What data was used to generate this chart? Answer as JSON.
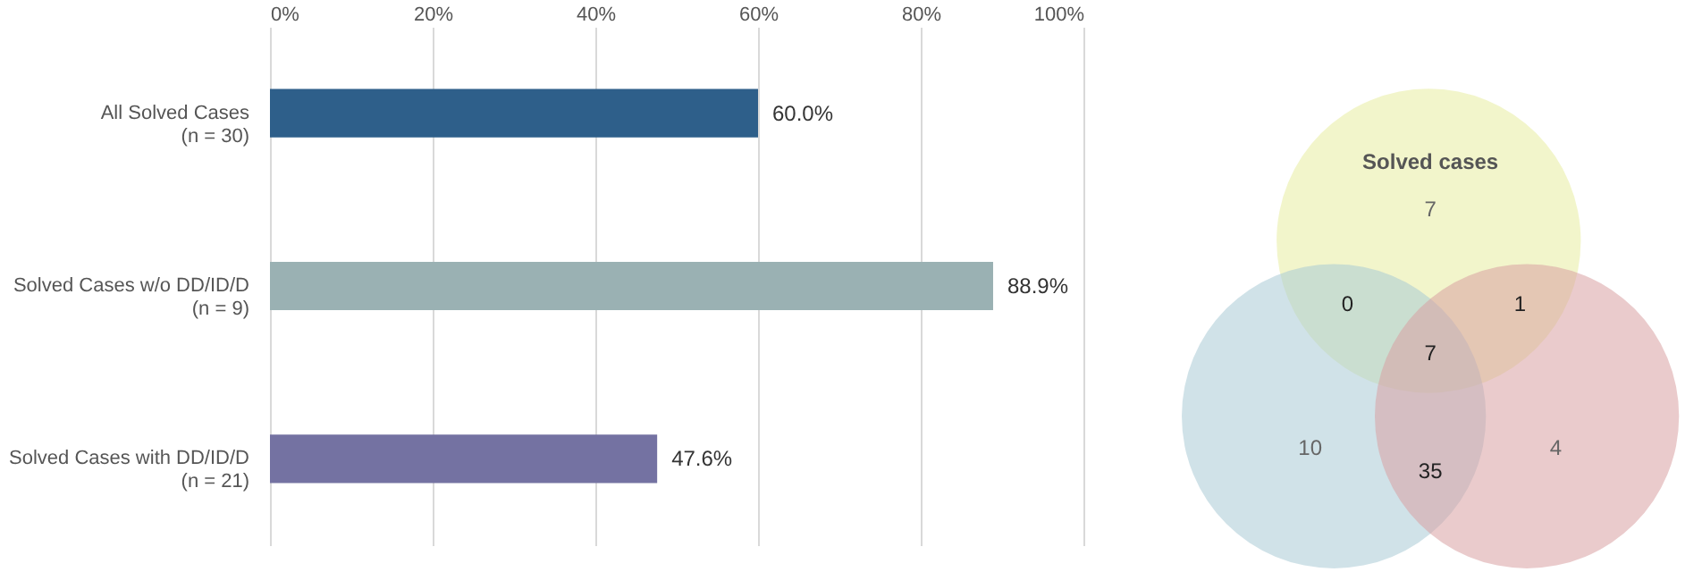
{
  "chart_data": [
    {
      "type": "bar",
      "orientation": "horizontal",
      "categories": [
        "All Solved Cases\n(n = 30)",
        "Solved Cases w/o DD/ID/D\n(n = 9)",
        "Solved Cases with DD/ID/D\n(n = 21)"
      ],
      "values": [
        60.0,
        88.9,
        47.6
      ],
      "colors": [
        "#2e5f8a",
        "#9ab1b3",
        "#7472a2"
      ],
      "value_labels": [
        "60.0%",
        "88.9%",
        "47.6%"
      ],
      "xlim": [
        0,
        100
      ],
      "xticks": [
        {
          "value": 0,
          "label": "0%"
        },
        {
          "value": 20,
          "label": "20%"
        },
        {
          "value": 40,
          "label": "40%"
        },
        {
          "value": 60,
          "label": "60%"
        },
        {
          "value": 80,
          "label": "80%"
        },
        {
          "value": 100,
          "label": "100%"
        }
      ],
      "grid": "x"
    },
    {
      "type": "other",
      "annotations": [
        "Solved cases",
        "7",
        "10",
        "4",
        "0",
        "1",
        "35",
        "7"
      ]
    }
  ]
}
